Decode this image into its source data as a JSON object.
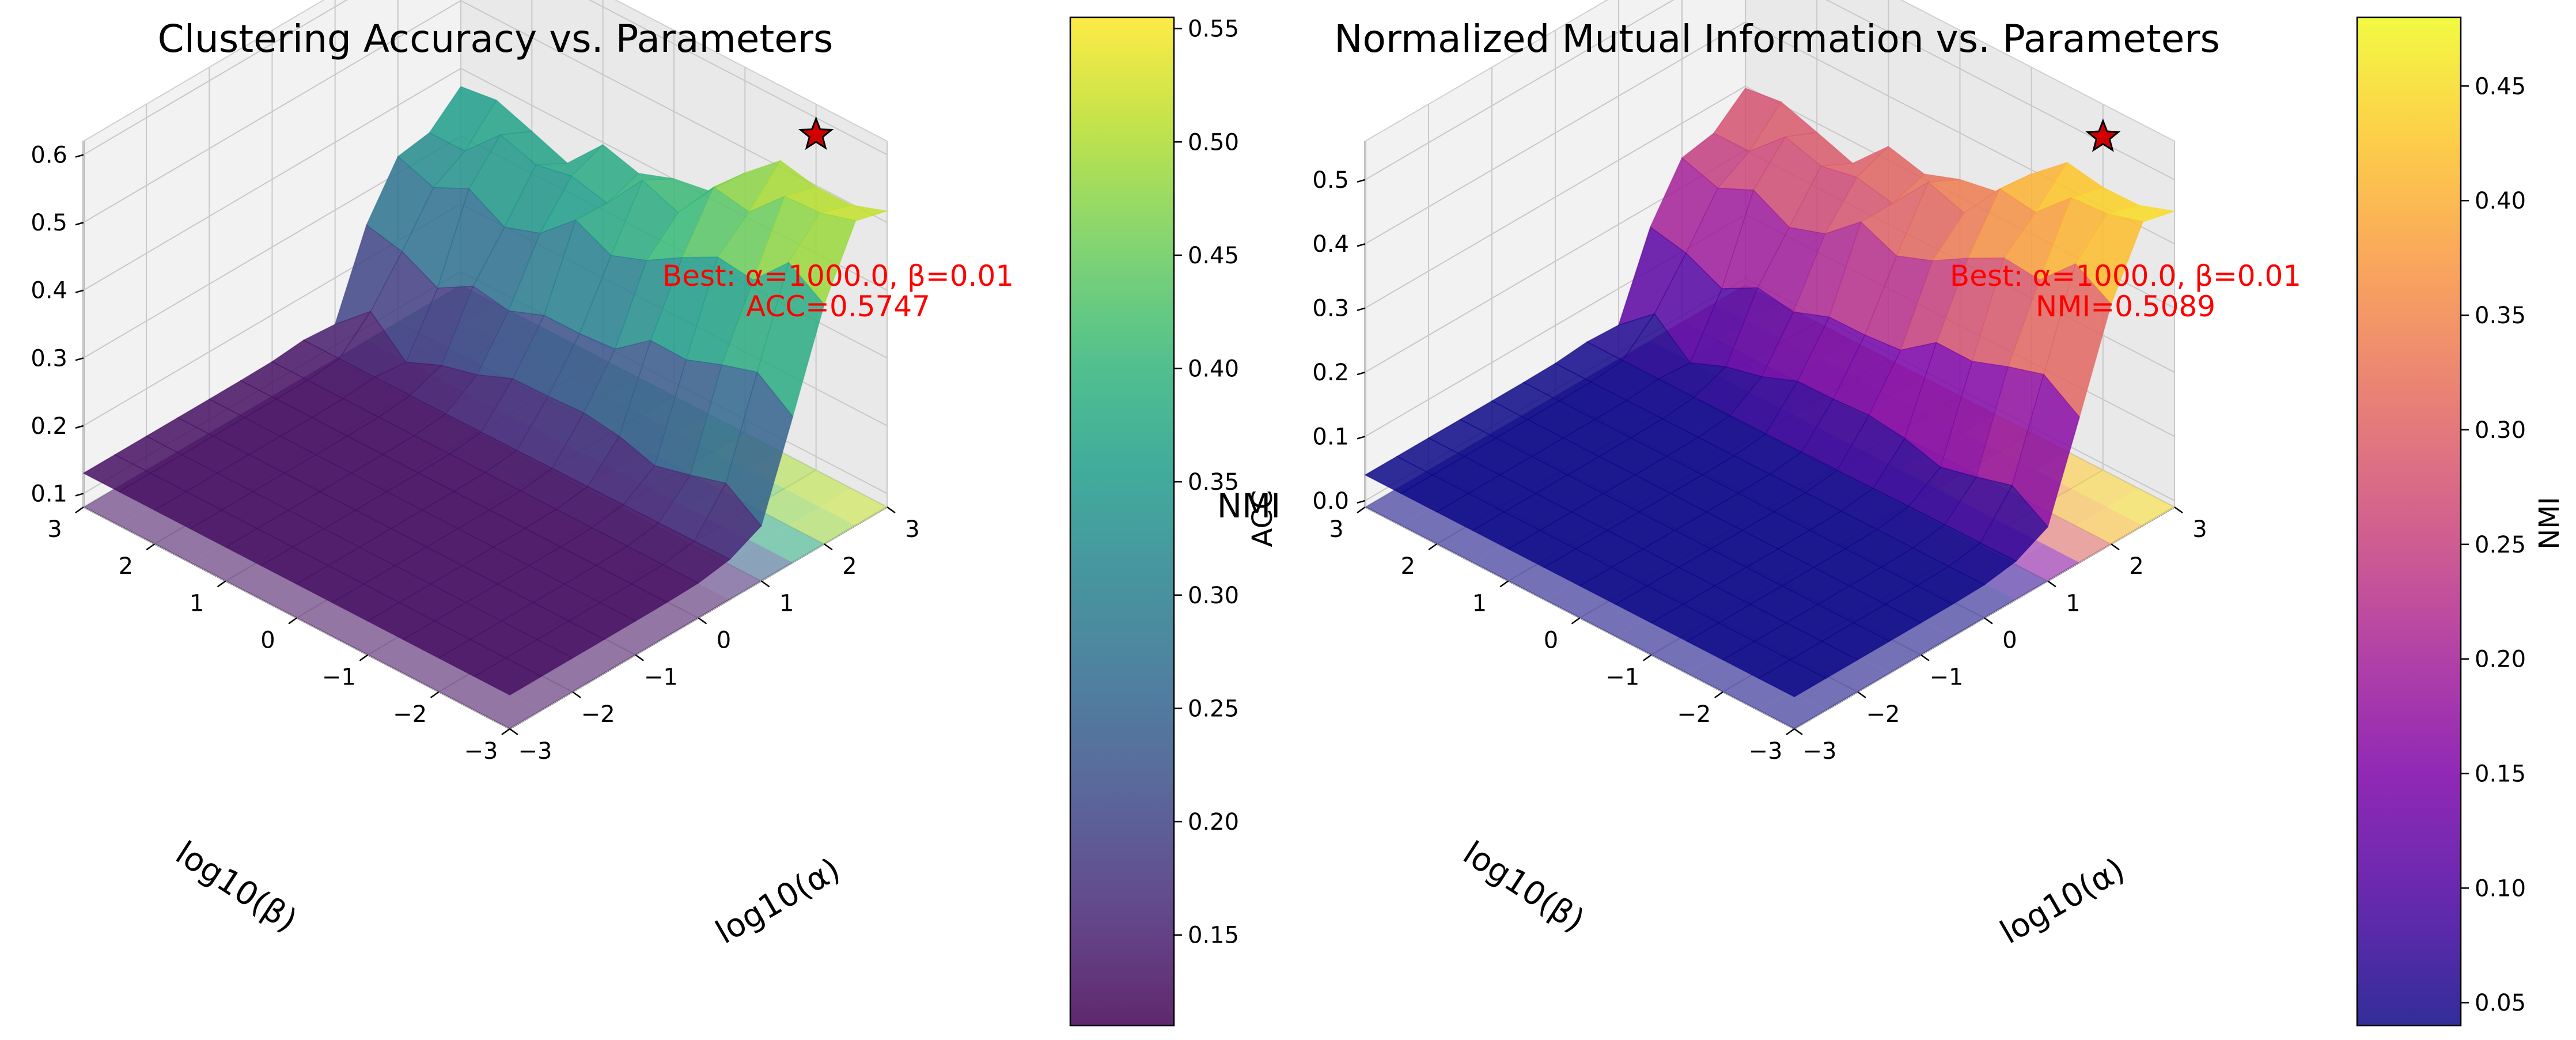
{
  "chart_data": [
    {
      "type": "surface3d",
      "title": "Clustering Accuracy vs. Parameters",
      "xlabel": "log10(α)",
      "ylabel": "log10(β)",
      "zlabel": "",
      "x": [
        -3,
        -2.5,
        -2,
        -1.5,
        -1,
        -0.5,
        0,
        0.5,
        1,
        1.5,
        2,
        2.5,
        3
      ],
      "y": [
        -3,
        -2.5,
        -2,
        -1.5,
        -1,
        -0.5,
        0,
        0.5,
        1,
        1.5,
        2,
        2.5,
        3
      ],
      "x_ticks": [
        "−3",
        "−2",
        "−1",
        "0",
        "1",
        "2",
        "3"
      ],
      "y_ticks": [
        "−3",
        "−2",
        "−1",
        "0",
        "1",
        "2",
        "3"
      ],
      "z_ticks": [
        "0.1",
        "0.2",
        "0.3",
        "0.4",
        "0.5",
        "0.6"
      ],
      "zlim": [
        0.08,
        0.62
      ],
      "colormap": "viridis",
      "colorbar": {
        "label": "ACC",
        "range": [
          0.11,
          0.555
        ],
        "ticks": [
          "0.15",
          "0.20",
          "0.25",
          "0.30",
          "0.35",
          "0.40",
          "0.45",
          "0.50",
          "0.55"
        ],
        "tick_values": [
          0.15,
          0.2,
          0.25,
          0.3,
          0.35,
          0.4,
          0.45,
          0.5,
          0.55
        ]
      },
      "z_model": {
        "low": 0.13,
        "high": 0.545,
        "alpha_center": 1.55,
        "alpha_width": 0.28,
        "beta_center": -0.9,
        "beta_width": 0.9
      },
      "best": {
        "alpha": 1000.0,
        "beta": 0.01,
        "value": 0.5747,
        "log_alpha": 3,
        "log_beta": -2
      },
      "annotation": [
        "Best: α=1000.0, β=0.01",
        "ACC=0.5747"
      ]
    },
    {
      "type": "surface3d",
      "title": "Normalized Mutual Information vs. Parameters",
      "xlabel": "log10(α)",
      "ylabel": "log10(β)",
      "zlabel": "",
      "x": [
        -3,
        -2.5,
        -2,
        -1.5,
        -1,
        -0.5,
        0,
        0.5,
        1,
        1.5,
        2,
        2.5,
        3
      ],
      "y": [
        -3,
        -2.5,
        -2,
        -1.5,
        -1,
        -0.5,
        0,
        0.5,
        1,
        1.5,
        2,
        2.5,
        3
      ],
      "x_ticks": [
        "−3",
        "−2",
        "−1",
        "0",
        "1",
        "2",
        "3"
      ],
      "y_ticks": [
        "−3",
        "−2",
        "−1",
        "0",
        "1",
        "2",
        "3"
      ],
      "z_ticks": [
        "0.0",
        "0.1",
        "0.2",
        "0.3",
        "0.4",
        "0.5"
      ],
      "zlim": [
        -0.01,
        0.56
      ],
      "colormap": "plasma",
      "colorbar": {
        "label": "NMI",
        "range": [
          0.04,
          0.48
        ],
        "ticks": [
          "0.05",
          "0.10",
          "0.15",
          "0.20",
          "0.25",
          "0.30",
          "0.35",
          "0.40",
          "0.45"
        ],
        "tick_values": [
          0.05,
          0.1,
          0.15,
          0.2,
          0.25,
          0.3,
          0.35,
          0.4,
          0.45
        ]
      },
      "z_model": {
        "low": 0.04,
        "high": 0.48,
        "alpha_center": 1.55,
        "alpha_width": 0.28,
        "beta_center": -0.9,
        "beta_width": 0.9
      },
      "best": {
        "alpha": 1000.0,
        "beta": 0.01,
        "value": 0.5089,
        "log_alpha": 3,
        "log_beta": -2
      },
      "annotation": [
        "Best: α=1000.0, β=0.01",
        "NMI=0.5089"
      ]
    }
  ],
  "stray_label": "NMI"
}
